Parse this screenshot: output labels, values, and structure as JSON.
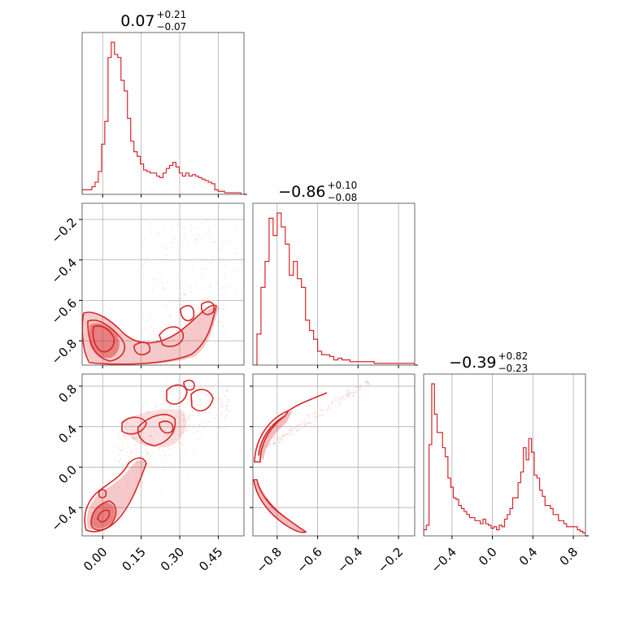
{
  "chart_data": {
    "type": "corner",
    "color": "#d62728",
    "grid": true,
    "panel_titles": [
      {
        "value": "0.07",
        "plus": "+0.21",
        "minus": "−0.07"
      },
      {
        "value": "−0.86",
        "plus": "+0.10",
        "minus": "−0.08"
      },
      {
        "value": "−0.39",
        "plus": "+0.82",
        "minus": "−0.23"
      }
    ],
    "param1_ticks": [
      "0.00",
      "0.15",
      "0.30",
      "0.45"
    ],
    "param1_tick_values": [
      0.0,
      0.15,
      0.3,
      0.45
    ],
    "param2_ticks": [
      "−0.8",
      "−0.6",
      "−0.4",
      "−0.2"
    ],
    "param2_tick_values": [
      -0.8,
      -0.6,
      -0.4,
      -0.2
    ],
    "param3_ticks": [
      "−0.4",
      "0.0",
      "0.4",
      "0.8"
    ],
    "param3_tick_values": [
      -0.4,
      0.0,
      0.4,
      0.8
    ],
    "ranges": {
      "param1": [
        -0.08,
        0.55
      ],
      "param2": [
        -0.92,
        -0.12
      ],
      "param3": [
        -0.68,
        0.92
      ]
    },
    "hist1": {
      "range": [
        -0.08,
        0.55
      ],
      "values": [
        3,
        3,
        3,
        5,
        8,
        15,
        33,
        48,
        90,
        100,
        92,
        90,
        75,
        68,
        50,
        35,
        28,
        25,
        20,
        16,
        15,
        14,
        14,
        12,
        11,
        14,
        17,
        19,
        21,
        18,
        14,
        12,
        14,
        12,
        13,
        12,
        11,
        10,
        9,
        8,
        7,
        3,
        2,
        2,
        1,
        1,
        1,
        1,
        1,
        0
      ]
    },
    "hist2": {
      "range": [
        -0.92,
        -0.12
      ],
      "values": [
        0,
        18,
        45,
        60,
        85,
        75,
        88,
        80,
        70,
        52,
        60,
        50,
        45,
        26,
        20,
        15,
        8,
        6,
        6,
        5,
        3,
        4,
        3,
        3,
        2,
        2,
        2,
        2,
        2,
        2,
        1,
        1,
        1,
        1,
        1,
        1,
        1,
        1,
        1,
        1
      ]
    },
    "hist3": {
      "range": [
        -0.68,
        0.92
      ],
      "values": [
        4,
        7,
        60,
        100,
        80,
        68,
        68,
        58,
        52,
        38,
        32,
        25,
        24,
        20,
        18,
        16,
        14,
        12,
        12,
        10,
        10,
        8,
        11,
        8,
        7,
        5,
        6,
        4,
        7,
        6,
        11,
        14,
        18,
        25,
        25,
        35,
        42,
        58,
        50,
        64,
        55,
        40,
        38,
        30,
        26,
        20,
        20,
        18,
        14,
        14,
        10,
        10,
        8,
        6,
        6,
        6,
        6,
        4,
        3,
        2
      ]
    }
  }
}
